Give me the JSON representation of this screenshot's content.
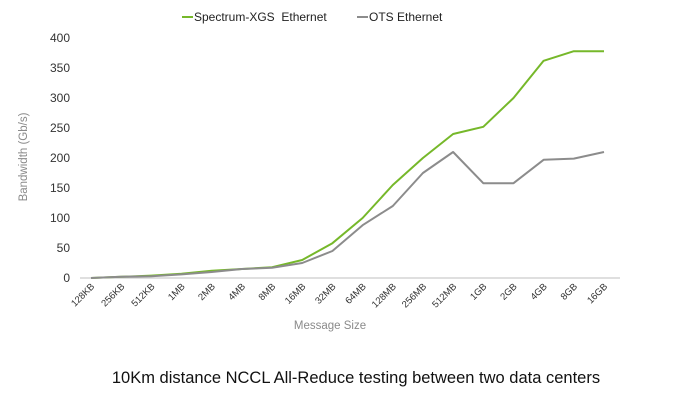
{
  "chart_data": {
    "type": "line",
    "title": "",
    "xlabel": "Message Size",
    "ylabel": "Bandwidth (Gb/s)",
    "ylim": [
      0,
      400
    ],
    "yticks": [
      0,
      50,
      100,
      150,
      200,
      250,
      300,
      350,
      400
    ],
    "grid": false,
    "legend": "top",
    "categories": [
      "128KB",
      "256KB",
      "512KB",
      "1MB",
      "2MB",
      "4MB",
      "8MB",
      "16MB",
      "32MB",
      "64MB",
      "128MB",
      "256MB",
      "512MB",
      "1GB",
      "2GB",
      "4GB",
      "8GB",
      "16GB"
    ],
    "series": [
      {
        "name": "Spectrum-XGS  Ethernet",
        "color": "#76b82a",
        "values": [
          0,
          2,
          4,
          7,
          12,
          15,
          18,
          30,
          58,
          100,
          155,
          200,
          240,
          252,
          300,
          362,
          378,
          378
        ]
      },
      {
        "name": "OTS Ethernet",
        "color": "#8c8c8c",
        "values": [
          0,
          2,
          3,
          6,
          10,
          15,
          17,
          25,
          45,
          88,
          120,
          175,
          210,
          158,
          158,
          197,
          199,
          210
        ]
      }
    ],
    "caption": "10Km distance NCCL All-Reduce testing between two data centers"
  }
}
